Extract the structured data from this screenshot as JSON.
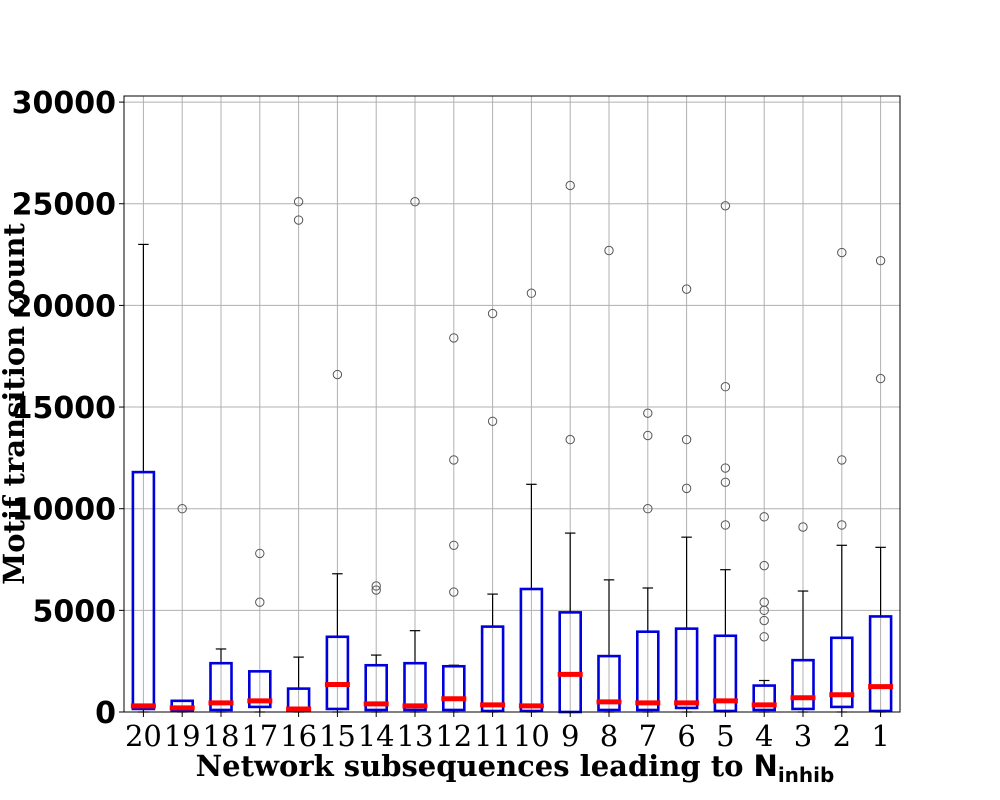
{
  "chart_data": {
    "type": "box",
    "title": "",
    "xlabel": "Network subsequences leading to ",
    "xlabel_symbol": "N",
    "xlabel_subscript": "inhib",
    "ylabel": "Motif transition count",
    "ylim": [
      0,
      30300
    ],
    "yticks": [
      0,
      5000,
      10000,
      15000,
      20000,
      25000,
      30000
    ],
    "grid": true,
    "colors": {
      "box": "#0000dd",
      "median": "#ff0000",
      "whisker": "#000000",
      "flier": "#555555",
      "grid": "#b0b0b0"
    },
    "categories": [
      "20",
      "19",
      "18",
      "17",
      "16",
      "15",
      "14",
      "13",
      "12",
      "11",
      "10",
      "9",
      "8",
      "7",
      "6",
      "5",
      "4",
      "3",
      "2",
      "1"
    ],
    "boxes": [
      {
        "label": "20",
        "q1": 150,
        "median": 300,
        "q3": 11800,
        "whisker_low": 0,
        "whisker_high": 23000,
        "fliers": []
      },
      {
        "label": "19",
        "q1": 50,
        "median": 200,
        "q3": 550,
        "whisker_low": 0,
        "whisker_high": 550,
        "fliers": [
          10000
        ]
      },
      {
        "label": "18",
        "q1": 100,
        "median": 450,
        "q3": 2400,
        "whisker_low": 0,
        "whisker_high": 3100,
        "fliers": []
      },
      {
        "label": "17",
        "q1": 250,
        "median": 550,
        "q3": 2000,
        "whisker_low": 0,
        "whisker_high": 2000,
        "fliers": [
          5400,
          7800
        ]
      },
      {
        "label": "16",
        "q1": 50,
        "median": 150,
        "q3": 1150,
        "whisker_low": 0,
        "whisker_high": 2700,
        "fliers": [
          24200,
          25100
        ]
      },
      {
        "label": "15",
        "q1": 150,
        "median": 1350,
        "q3": 3700,
        "whisker_low": 0,
        "whisker_high": 6800,
        "fliers": [
          16600
        ]
      },
      {
        "label": "14",
        "q1": 100,
        "median": 400,
        "q3": 2300,
        "whisker_low": 0,
        "whisker_high": 2800,
        "fliers": [
          6000,
          6200
        ]
      },
      {
        "label": "13",
        "q1": 100,
        "median": 300,
        "q3": 2400,
        "whisker_low": 0,
        "whisker_high": 4000,
        "fliers": [
          25100
        ]
      },
      {
        "label": "12",
        "q1": 100,
        "median": 650,
        "q3": 2250,
        "whisker_low": 0,
        "whisker_high": 2300,
        "fliers": [
          5900,
          8200,
          12400,
          18400
        ]
      },
      {
        "label": "11",
        "q1": 50,
        "median": 350,
        "q3": 4200,
        "whisker_low": 0,
        "whisker_high": 5800,
        "fliers": [
          14300,
          19600
        ]
      },
      {
        "label": "10",
        "q1": 50,
        "median": 300,
        "q3": 6050,
        "whisker_low": 0,
        "whisker_high": 11200,
        "fliers": [
          20600
        ]
      },
      {
        "label": "9",
        "q1": 0,
        "median": 1850,
        "q3": 4900,
        "whisker_low": 0,
        "whisker_high": 8800,
        "fliers": [
          13400,
          25900
        ]
      },
      {
        "label": "8",
        "q1": 100,
        "median": 500,
        "q3": 2750,
        "whisker_low": 0,
        "whisker_high": 6500,
        "fliers": [
          22700
        ]
      },
      {
        "label": "7",
        "q1": 100,
        "median": 450,
        "q3": 3950,
        "whisker_low": 0,
        "whisker_high": 6100,
        "fliers": [
          10000,
          13600,
          14700
        ]
      },
      {
        "label": "6",
        "q1": 200,
        "median": 450,
        "q3": 4100,
        "whisker_low": 0,
        "whisker_high": 8600,
        "fliers": [
          11000,
          13400,
          20800
        ]
      },
      {
        "label": "5",
        "q1": 50,
        "median": 550,
        "q3": 3750,
        "whisker_low": 0,
        "whisker_high": 7000,
        "fliers": [
          9200,
          11300,
          12000,
          16000,
          24900
        ]
      },
      {
        "label": "4",
        "q1": 100,
        "median": 350,
        "q3": 1300,
        "whisker_low": 0,
        "whisker_high": 1550,
        "fliers": [
          3700,
          4500,
          5000,
          5400,
          7200,
          9600
        ]
      },
      {
        "label": "3",
        "q1": 150,
        "median": 700,
        "q3": 2550,
        "whisker_low": 0,
        "whisker_high": 5950,
        "fliers": [
          9100
        ]
      },
      {
        "label": "2",
        "q1": 250,
        "median": 850,
        "q3": 3650,
        "whisker_low": 0,
        "whisker_high": 8200,
        "fliers": [
          9200,
          12400,
          22600
        ]
      },
      {
        "label": "1",
        "q1": 50,
        "median": 1250,
        "q3": 4700,
        "whisker_low": 0,
        "whisker_high": 8100,
        "fliers": [
          16400,
          22200
        ]
      }
    ]
  }
}
